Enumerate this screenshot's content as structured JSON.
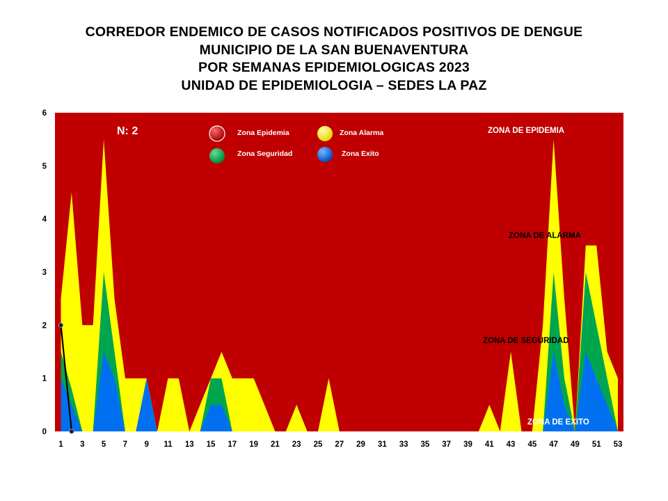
{
  "title_lines": [
    "CORREDOR ENDEMICO DE CASOS NOTIFICADOS POSITIVOS DE DENGUE",
    "MUNICIPIO DE LA SAN BUENAVENTURA",
    "POR SEMANAS EPIDEMIOLOGICAS 2023",
    "UNIDAD DE EPIDEMIOLOGIA – SEDES LA PAZ"
  ],
  "colors": {
    "epidemia": "#c00000",
    "alarma": "#ffff00",
    "seguridad": "#00a550",
    "exito": "#0070f0",
    "casos": "#000000"
  },
  "annotation_n": "N: 2",
  "legend": [
    {
      "label": "Zona Epidemia",
      "color": "#c00000"
    },
    {
      "label": "Zona Alarma",
      "color": "#ffff00"
    },
    {
      "label": "Zona Seguridad",
      "color": "#00a550"
    },
    {
      "label": "Zona Exito",
      "color": "#0070f0"
    }
  ],
  "zone_labels": {
    "epidemia": "ZONA DE EPIDEMIA",
    "alarma": "ZONA DE ALARMA",
    "seguridad": "ZONA DE  SEGURIDAD",
    "exito": "ZONA DE  EXITO"
  },
  "chart_data": {
    "type": "area",
    "title": "CORREDOR ENDEMICO DE CASOS NOTIFICADOS POSITIVOS DE DENGUE",
    "xlabel": "",
    "ylabel": "",
    "ylim": [
      0,
      6
    ],
    "xlim": [
      1,
      53
    ],
    "y_ticks": [
      0,
      1,
      2,
      3,
      4,
      5,
      6
    ],
    "x_tick_labels": [
      1,
      3,
      5,
      7,
      9,
      11,
      13,
      15,
      17,
      19,
      21,
      23,
      25,
      27,
      29,
      31,
      33,
      35,
      37,
      39,
      41,
      43,
      45,
      47,
      49,
      51,
      53
    ],
    "grid": false,
    "legend_position": "top-center",
    "x": [
      1,
      2,
      3,
      4,
      5,
      6,
      7,
      8,
      9,
      10,
      11,
      12,
      13,
      14,
      15,
      16,
      17,
      18,
      19,
      20,
      21,
      22,
      23,
      24,
      25,
      26,
      27,
      28,
      29,
      30,
      31,
      32,
      33,
      34,
      35,
      36,
      37,
      38,
      39,
      40,
      41,
      42,
      43,
      44,
      45,
      46,
      47,
      48,
      49,
      50,
      51,
      52,
      53
    ],
    "series": [
      {
        "name": "Zona Alarma",
        "values": [
          2.5,
          4.5,
          2,
          2,
          5.5,
          2.5,
          1,
          1,
          1,
          0,
          1,
          1,
          0,
          0.5,
          1,
          1.5,
          1,
          1,
          1,
          0.5,
          0,
          0,
          0.5,
          0,
          0,
          1,
          0,
          0,
          0,
          0,
          0,
          0,
          0,
          0,
          0,
          0,
          0,
          0,
          0,
          0,
          0.5,
          0,
          1.5,
          0,
          0,
          2,
          5.5,
          2.5,
          0,
          3.5,
          3.5,
          1.5,
          1
        ]
      },
      {
        "name": "Zona Seguridad",
        "values": [
          1.5,
          0.8,
          0,
          0,
          3,
          1.5,
          0,
          0,
          0,
          0,
          0,
          0,
          0,
          0,
          1,
          1,
          0,
          0,
          0,
          0,
          0,
          0,
          0,
          0,
          0,
          0,
          0,
          0,
          0,
          0,
          0,
          0,
          0,
          0,
          0,
          0,
          0,
          0,
          0,
          0,
          0,
          0,
          0,
          0,
          0,
          0,
          3,
          1,
          0,
          3,
          2,
          1,
          0
        ]
      },
      {
        "name": "Zona Exito",
        "values": [
          1,
          0.5,
          0,
          0,
          1.5,
          1,
          0,
          0,
          1,
          0,
          0,
          0,
          0,
          0,
          0.5,
          0.5,
          0,
          0,
          0,
          0,
          0,
          0,
          0,
          0,
          0,
          0,
          0,
          0,
          0,
          0,
          0,
          0,
          0,
          0,
          0,
          0,
          0,
          0,
          0,
          0,
          0,
          0,
          0,
          0,
          0,
          0,
          1.5,
          0.5,
          0,
          1.5,
          1,
          0.5,
          0
        ]
      },
      {
        "name": "Casos",
        "x": [
          1,
          2
        ],
        "values": [
          2,
          0
        ]
      }
    ]
  }
}
